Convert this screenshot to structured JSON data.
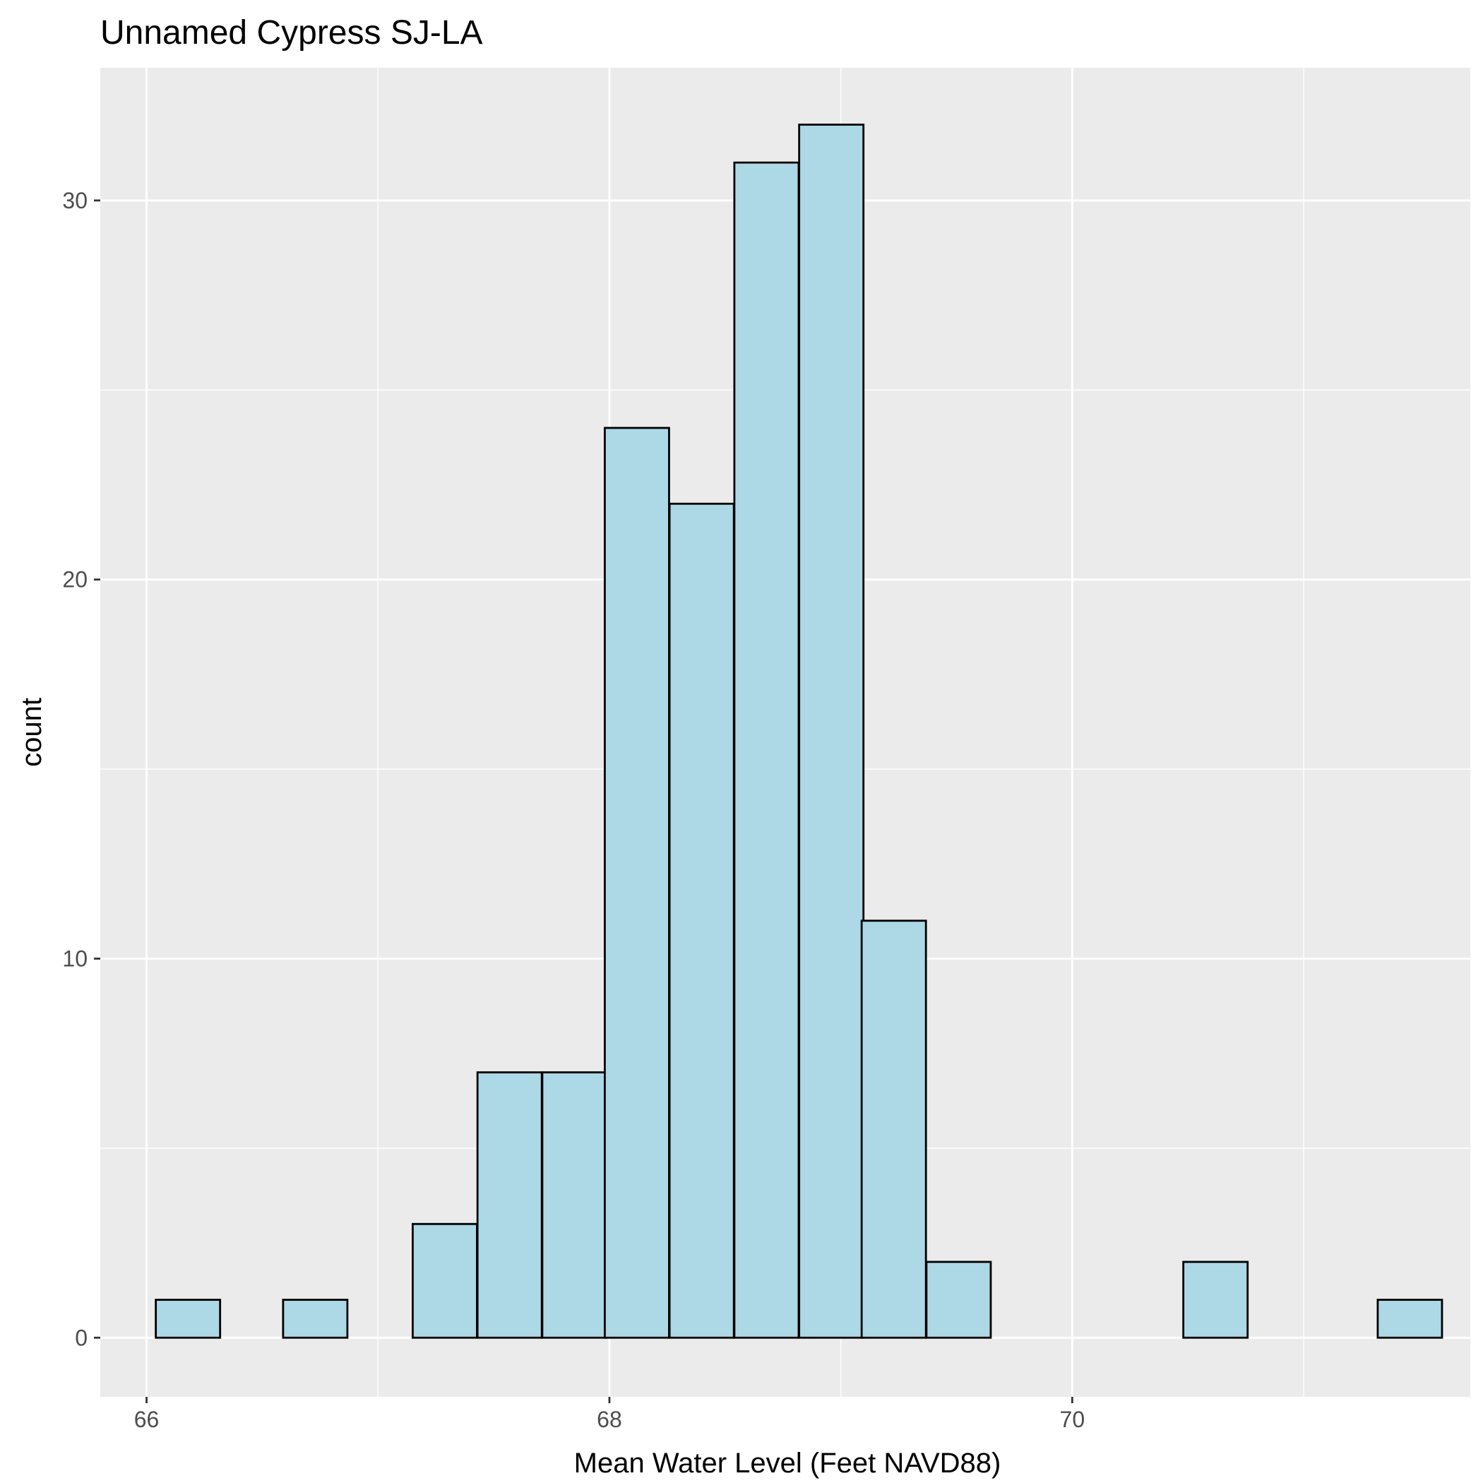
{
  "chart_data": {
    "type": "bar",
    "title": "Unnamed Cypress SJ-LA",
    "xlabel": "Mean Water Level (Feet NAVD88)",
    "ylabel": "count",
    "xlim": [
      65.8,
      71.72
    ],
    "ylim": [
      -1.56,
      33.5
    ],
    "x_ticks": [
      66,
      68,
      70
    ],
    "x_minor": [
      67,
      69,
      71
    ],
    "y_ticks": [
      0,
      10,
      20,
      30
    ],
    "y_minor": [
      5,
      15,
      25
    ],
    "grid": true,
    "bin_width": 0.2778,
    "bins": [
      {
        "x0": 66.04,
        "count": 1
      },
      {
        "x0": 66.32,
        "count": 0
      },
      {
        "x0": 66.59,
        "count": 1
      },
      {
        "x0": 66.87,
        "count": 0
      },
      {
        "x0": 67.15,
        "count": 3
      },
      {
        "x0": 67.43,
        "count": 7
      },
      {
        "x0": 67.71,
        "count": 7
      },
      {
        "x0": 67.98,
        "count": 24
      },
      {
        "x0": 68.26,
        "count": 22
      },
      {
        "x0": 68.54,
        "count": 31
      },
      {
        "x0": 68.82,
        "count": 32
      },
      {
        "x0": 69.09,
        "count": 11
      },
      {
        "x0": 69.37,
        "count": 2
      },
      {
        "x0": 69.65,
        "count": 0
      },
      {
        "x0": 69.93,
        "count": 0
      },
      {
        "x0": 70.21,
        "count": 0
      },
      {
        "x0": 70.48,
        "count": 2
      },
      {
        "x0": 70.76,
        "count": 0
      },
      {
        "x0": 71.04,
        "count": 0
      },
      {
        "x0": 71.32,
        "count": 1
      }
    ],
    "fill_color": "#add8e6",
    "edge_color": "#000000",
    "panel_color": "#ebebeb",
    "grid_color": "#ffffff"
  }
}
